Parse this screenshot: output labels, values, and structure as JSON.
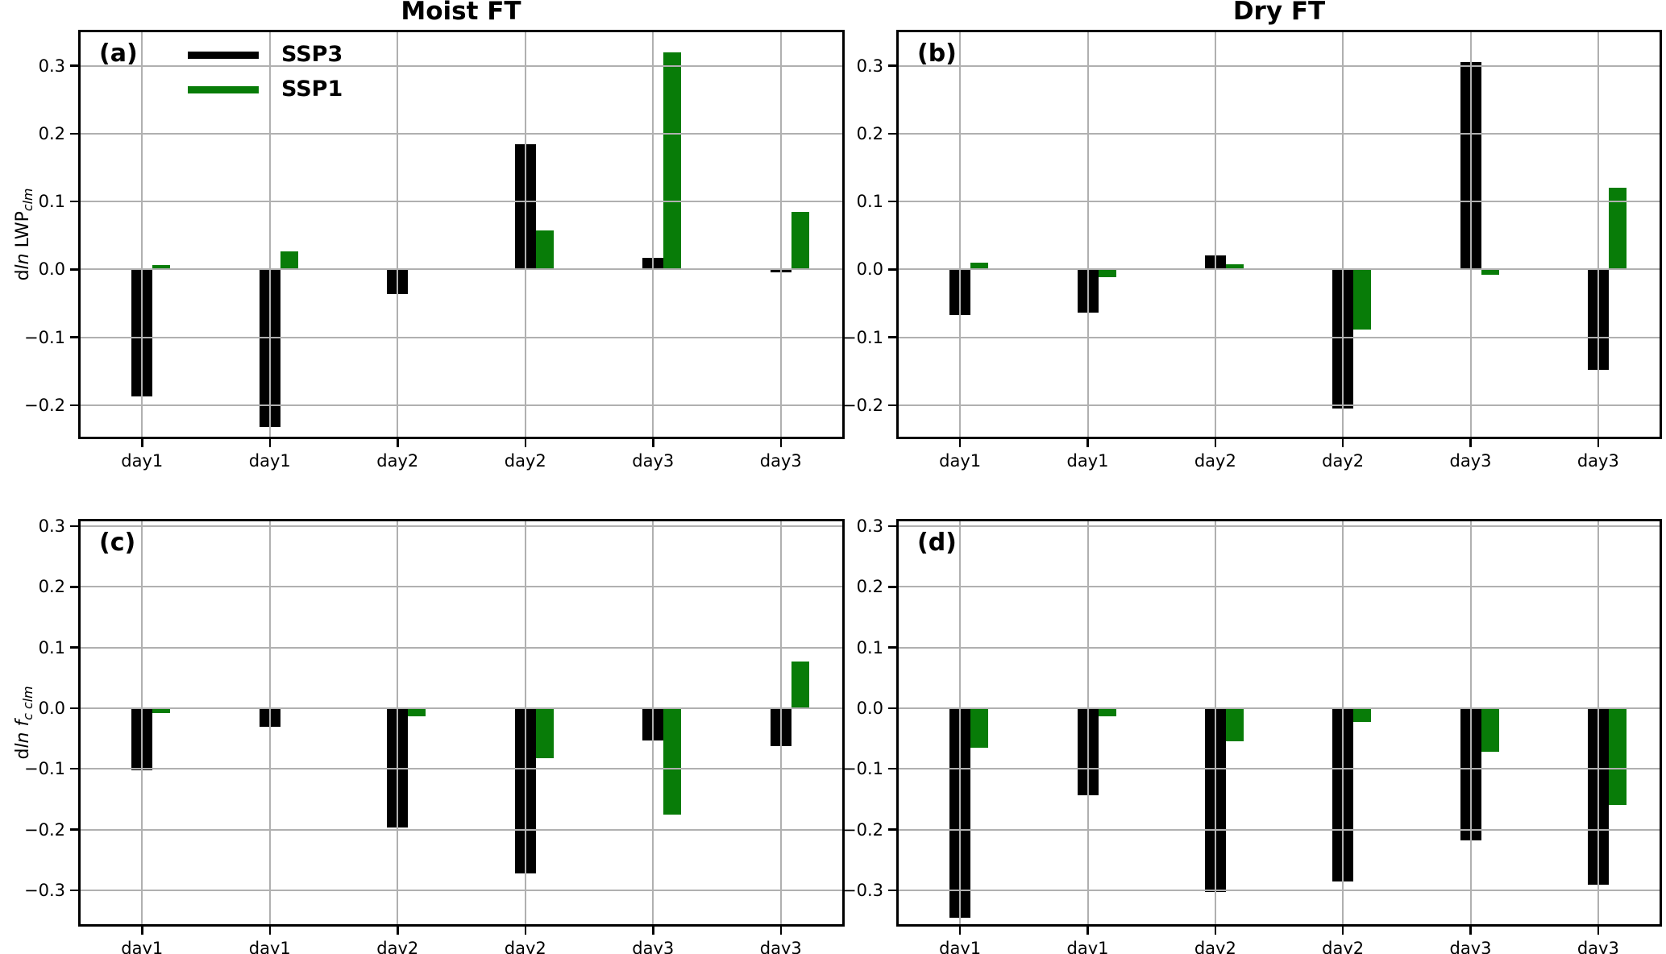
{
  "figure": {
    "column_titles": [
      "Moist FT",
      "Dry FT"
    ],
    "legend": {
      "position": "inside-top-left-panel-a",
      "items": [
        {
          "label": "SSP3",
          "color": "#000000"
        },
        {
          "label": "SSP1",
          "color": "#087c08"
        }
      ]
    },
    "colors": {
      "ssp3": "#000000",
      "ssp1": "#087c08",
      "grid": "#b0b0b0",
      "spine": "#000000",
      "background": "#ffffff"
    }
  },
  "chart_data": [
    {
      "type": "bar",
      "panel": "(a)",
      "column_title": "Moist FT",
      "ylabel_text": "d ln LWP_clm",
      "ylabel_parts": [
        {
          "t": "d"
        },
        {
          "t": "ln",
          "i": true
        },
        {
          "t": " LWP"
        },
        {
          "t": "clm",
          "i": true,
          "sub": true
        }
      ],
      "categories": [
        "day1",
        "day1",
        "day2",
        "day2",
        "day3",
        "day3"
      ],
      "series": [
        {
          "name": "SSP3",
          "color": "#000000",
          "values": [
            -0.187,
            -0.232,
            -0.036,
            0.185,
            0.017,
            -0.004
          ]
        },
        {
          "name": "SSP1",
          "color": "#087c08",
          "values": [
            0.006,
            0.027,
            0.002,
            0.057,
            0.32,
            0.085
          ]
        }
      ],
      "ylim": [
        -0.25,
        0.353
      ],
      "yticks": [
        0.3,
        0.2,
        0.1,
        0.0,
        -0.1,
        -0.2
      ],
      "grid": true,
      "legend_visible": true
    },
    {
      "type": "bar",
      "panel": "(b)",
      "column_title": "Dry FT",
      "ylabel_text": "",
      "ylabel_parts": [],
      "categories": [
        "day1",
        "day1",
        "day2",
        "day2",
        "day3",
        "day3"
      ],
      "series": [
        {
          "name": "SSP3",
          "color": "#000000",
          "values": [
            -0.067,
            -0.064,
            0.021,
            -0.205,
            0.305,
            -0.148
          ]
        },
        {
          "name": "SSP1",
          "color": "#087c08",
          "values": [
            0.01,
            -0.012,
            0.007,
            -0.088,
            -0.008,
            0.12
          ]
        }
      ],
      "ylim": [
        -0.25,
        0.353
      ],
      "yticks": [
        0.3,
        0.2,
        0.1,
        0.0,
        -0.1,
        -0.2
      ],
      "grid": true,
      "legend_visible": false
    },
    {
      "type": "bar",
      "panel": "(c)",
      "column_title": "Moist FT",
      "ylabel_text": "d ln f_c clm",
      "ylabel_parts": [
        {
          "t": "d"
        },
        {
          "t": "ln",
          "i": true
        },
        {
          "t": " "
        },
        {
          "t": "f",
          "i": true
        },
        {
          "t": "c clm",
          "i": true,
          "sub": true
        }
      ],
      "categories": [
        "day1",
        "day1",
        "day2",
        "day2",
        "day3",
        "day3"
      ],
      "series": [
        {
          "name": "SSP3",
          "color": "#000000",
          "values": [
            -0.103,
            -0.03,
            -0.196,
            -0.273,
            -0.053,
            -0.063
          ]
        },
        {
          "name": "SSP1",
          "color": "#087c08",
          "values": [
            -0.008,
            -0.002,
            -0.014,
            -0.083,
            -0.176,
            0.077
          ]
        }
      ],
      "ylim": [
        -0.36,
        0.312
      ],
      "yticks": [
        0.3,
        0.2,
        0.1,
        0.0,
        -0.1,
        -0.2,
        -0.3
      ],
      "grid": true,
      "legend_visible": false
    },
    {
      "type": "bar",
      "panel": "(d)",
      "column_title": "Dry FT",
      "ylabel_text": "",
      "ylabel_parts": [],
      "categories": [
        "day1",
        "day1",
        "day2",
        "day2",
        "day3",
        "day3"
      ],
      "series": [
        {
          "name": "SSP3",
          "color": "#000000",
          "values": [
            -0.345,
            -0.143,
            -0.303,
            -0.285,
            -0.218,
            -0.291
          ]
        },
        {
          "name": "SSP1",
          "color": "#087c08",
          "values": [
            -0.065,
            -0.013,
            -0.054,
            -0.023,
            -0.072,
            -0.16
          ]
        }
      ],
      "ylim": [
        -0.36,
        0.312
      ],
      "yticks": [
        0.3,
        0.2,
        0.1,
        0.0,
        -0.1,
        -0.2,
        -0.3
      ],
      "grid": true,
      "legend_visible": false
    }
  ]
}
